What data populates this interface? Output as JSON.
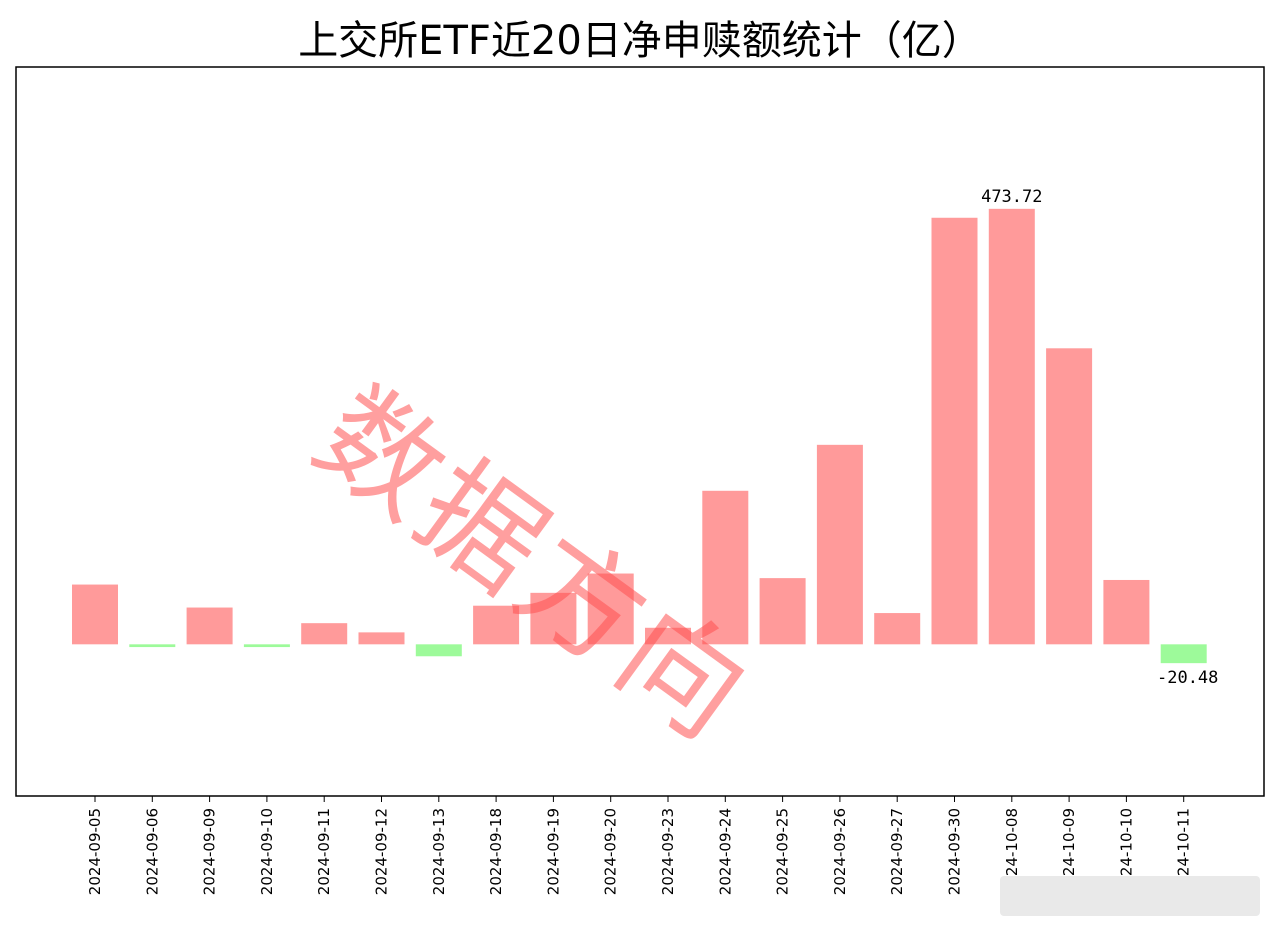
{
  "chart_data": {
    "type": "bar",
    "title": "上交所ETF近20日净申赎额统计（亿）",
    "categories": [
      "2024-09-05",
      "2024-09-06",
      "2024-09-09",
      "2024-09-10",
      "2024-09-11",
      "2024-09-12",
      "2024-09-13",
      "2024-09-18",
      "2024-09-19",
      "2024-09-20",
      "2024-09-23",
      "2024-09-24",
      "2024-09-25",
      "2024-09-26",
      "2024-09-27",
      "2024-09-30",
      "2024-10-08",
      "2024-10-09",
      "2024-10-10",
      "2024-10-11"
    ],
    "values": [
      65,
      -3,
      40,
      -3,
      23,
      13,
      -13,
      42,
      56,
      77,
      18,
      167,
      72,
      217,
      34,
      464,
      473.72,
      322,
      70,
      -20.48
    ],
    "data_labels": [
      {
        "index": 16,
        "text": "473.72"
      },
      {
        "index": 19,
        "text": "-20.48"
      }
    ],
    "ylim": [
      -165,
      628
    ],
    "grid": false,
    "colors": {
      "positive": "#ff9a9a",
      "negative": "#9dfa9a"
    }
  },
  "watermark": "数据方向"
}
